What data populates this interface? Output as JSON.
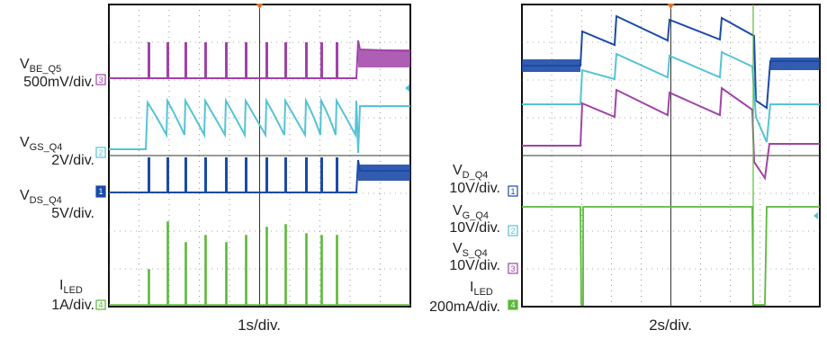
{
  "chart_data": [
    {
      "type": "line",
      "xlabel": "1s/div.",
      "colors": {
        "ch1": "#1c4aa6",
        "ch2": "#55c3d6",
        "ch3": "#a043a8",
        "ch4": "#5cb83a"
      },
      "channels": [
        {
          "id": "3",
          "name_main": "V",
          "name_sub": "BE_Q5",
          "scale": "500mV/div."
        },
        {
          "id": "2",
          "name_main": "V",
          "name_sub": "GS_Q4",
          "scale": "2V/div."
        },
        {
          "id": "1",
          "name_main": "V",
          "name_sub": "DS_Q4",
          "scale": "5V/div."
        },
        {
          "id": "4",
          "name_main": "I",
          "name_sub": "LED",
          "scale": "1A/div."
        }
      ]
    },
    {
      "type": "line",
      "xlabel": "2s/div.",
      "colors": {
        "ch1": "#1c4aa6",
        "ch2": "#55c3d6",
        "ch3": "#a043a8",
        "ch4": "#5cb83a"
      },
      "channels": [
        {
          "id": "1",
          "name_main": "V",
          "name_sub": "D_Q4",
          "scale": "10V/div."
        },
        {
          "id": "2",
          "name_main": "V",
          "name_sub": "G_Q4",
          "scale": "10V/div."
        },
        {
          "id": "3",
          "name_main": "V",
          "name_sub": "S_Q4",
          "scale": "10V/div."
        },
        {
          "id": "4",
          "name_main": "I",
          "name_sub": "LED",
          "scale": "200mA/div."
        }
      ]
    }
  ]
}
